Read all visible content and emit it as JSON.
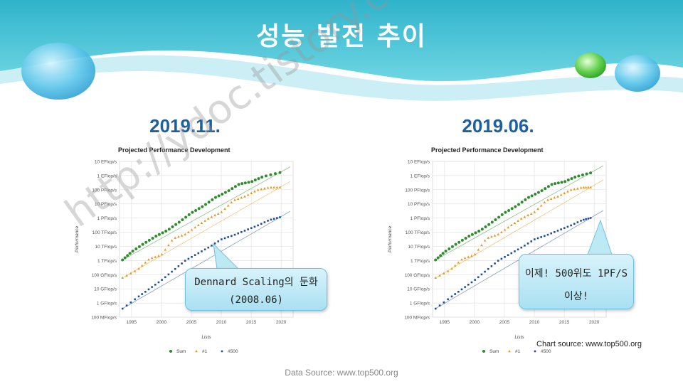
{
  "slide": {
    "title": "성능 발전 추이",
    "data_source": "Data Source: www.top500.org",
    "chart_source": "Chart source: www.top500.org",
    "watermark": "http://ydoc.tistory.com"
  },
  "colors": {
    "header": "#3fc0d2",
    "sum": "#2e8b2e",
    "first": "#e8961e",
    "last": "#1f4e96"
  },
  "left": {
    "date": "2019.11.",
    "callout_lines": [
      "Dennard Scaling의 둔화",
      "(2008.06)"
    ]
  },
  "right": {
    "date": "2019.06.",
    "callout_lines": [
      "이제! 500위도 1PF/S",
      "이상!"
    ]
  },
  "chart_data": [
    {
      "type": "scatter",
      "title": "Projected Performance Development",
      "xlabel": "Lists",
      "ylabel": "Performance",
      "x_ticks": [
        "1995",
        "2000",
        "2005",
        "2010",
        "2015",
        "2020"
      ],
      "y_ticks": [
        "100 MFlop/s",
        "1 GFlop/s",
        "10 GFlop/s",
        "100 GFlop/s",
        "1 TFlop/s",
        "10 TFlop/s",
        "100 TFlop/s",
        "1 PFlop/s",
        "10 PFlop/s",
        "100 PFlop/s",
        "1 EFlop/s",
        "10 EFlop/s"
      ],
      "y_scale": "log",
      "xlim": [
        1993,
        2022
      ],
      "legend": [
        "Sum",
        "#1",
        "#500"
      ],
      "legend_position": "bottom",
      "series": [
        {
          "name": "Sum",
          "color": "#2e8b2e",
          "x": [
            1993.5,
            1995,
            1997,
            1999,
            2001,
            2003,
            2005,
            2007,
            2009,
            2011,
            2013,
            2015,
            2017,
            2019.8
          ],
          "y": [
            "1.1 TFlop/s",
            "4 TFlop/s",
            "15 TFlop/s",
            "50 TFlop/s",
            "135 TFlop/s",
            "520 TFlop/s",
            "2.3 PFlop/s",
            "7 PFlop/s",
            "28 PFlop/s",
            "74 PFlop/s",
            "250 PFlop/s",
            "363 PFlop/s",
            "845 PFlop/s",
            "1.65 EFlop/s"
          ]
        },
        {
          "name": "#1",
          "color": "#e8961e",
          "x": [
            1993.5,
            1996,
            1998,
            2000,
            2002,
            2004,
            2006,
            2008,
            2010,
            2012,
            2014,
            2016,
            2018,
            2019.8
          ],
          "y": [
            "60 GFlop/s",
            "220 GFlop/s",
            "1.3 TFlop/s",
            "2.4 TFlop/s",
            "36 TFlop/s",
            "70 TFlop/s",
            "280 TFlop/s",
            "1 PFlop/s",
            "2.5 PFlop/s",
            "17 PFlop/s",
            "34 PFlop/s",
            "93 PFlop/s",
            "143 PFlop/s",
            "148 PFlop/s"
          ]
        },
        {
          "name": "#500",
          "color": "#1f4e96",
          "x": [
            1993.5,
            1996,
            1998,
            2000,
            2002,
            2004,
            2006,
            2008,
            2010,
            2012,
            2014,
            2016,
            2018,
            2019.8
          ],
          "y": [
            "0.4 GFlop/s",
            "2.5 GFlop/s",
            "10 GFlop/s",
            "40 GFlop/s",
            "200 GFlop/s",
            "1 TFlop/s",
            "3 TFlop/s",
            "9 TFlop/s",
            "31 TFlop/s",
            "60 TFlop/s",
            "133 TFlop/s",
            "286 TFlop/s",
            "716 TFlop/s",
            "1.14 PFlop/s"
          ]
        }
      ]
    },
    {
      "type": "scatter",
      "title": "Projected Performance Development",
      "xlabel": "Lists",
      "ylabel": "Performance",
      "x_ticks": [
        "1995",
        "2000",
        "2005",
        "2010",
        "2015",
        "2020"
      ],
      "y_ticks": [
        "100 MFlop/s",
        "1 GFlop/s",
        "10 GFlop/s",
        "100 GFlop/s",
        "1 TFlop/s",
        "10 TFlop/s",
        "100 TFlop/s",
        "1 PFlop/s",
        "10 PFlop/s",
        "100 PFlop/s",
        "1 EFlop/s",
        "10 EFlop/s"
      ],
      "y_scale": "log",
      "xlim": [
        1993,
        2022
      ],
      "legend": [
        "Sum",
        "#1",
        "#500"
      ],
      "legend_position": "bottom",
      "series": [
        {
          "name": "Sum",
          "color": "#2e8b2e",
          "x": [
            1993.5,
            1995,
            1997,
            1999,
            2001,
            2003,
            2005,
            2007,
            2009,
            2011,
            2013,
            2015,
            2017,
            2019.4
          ],
          "y": [
            "1.1 TFlop/s",
            "4 TFlop/s",
            "15 TFlop/s",
            "50 TFlop/s",
            "135 TFlop/s",
            "520 TFlop/s",
            "2.3 PFlop/s",
            "7 PFlop/s",
            "28 PFlop/s",
            "74 PFlop/s",
            "250 PFlop/s",
            "363 PFlop/s",
            "845 PFlop/s",
            "1.56 EFlop/s"
          ]
        },
        {
          "name": "#1",
          "color": "#e8961e",
          "x": [
            1993.5,
            1996,
            1998,
            2000,
            2002,
            2004,
            2006,
            2008,
            2010,
            2012,
            2014,
            2016,
            2018,
            2019.4
          ],
          "y": [
            "60 GFlop/s",
            "220 GFlop/s",
            "1.3 TFlop/s",
            "2.4 TFlop/s",
            "36 TFlop/s",
            "70 TFlop/s",
            "280 TFlop/s",
            "1 PFlop/s",
            "2.5 PFlop/s",
            "17 PFlop/s",
            "34 PFlop/s",
            "93 PFlop/s",
            "143 PFlop/s",
            "148 PFlop/s"
          ]
        },
        {
          "name": "#500",
          "color": "#1f4e96",
          "x": [
            1993.5,
            1996,
            1998,
            2000,
            2002,
            2004,
            2006,
            2008,
            2010,
            2012,
            2014,
            2016,
            2018,
            2019.4
          ],
          "y": [
            "0.4 GFlop/s",
            "2.5 GFlop/s",
            "10 GFlop/s",
            "40 GFlop/s",
            "200 GFlop/s",
            "1 TFlop/s",
            "3 TFlop/s",
            "9 TFlop/s",
            "31 TFlop/s",
            "60 TFlop/s",
            "133 TFlop/s",
            "286 TFlop/s",
            "716 TFlop/s",
            "1.02 PFlop/s"
          ]
        }
      ]
    }
  ]
}
